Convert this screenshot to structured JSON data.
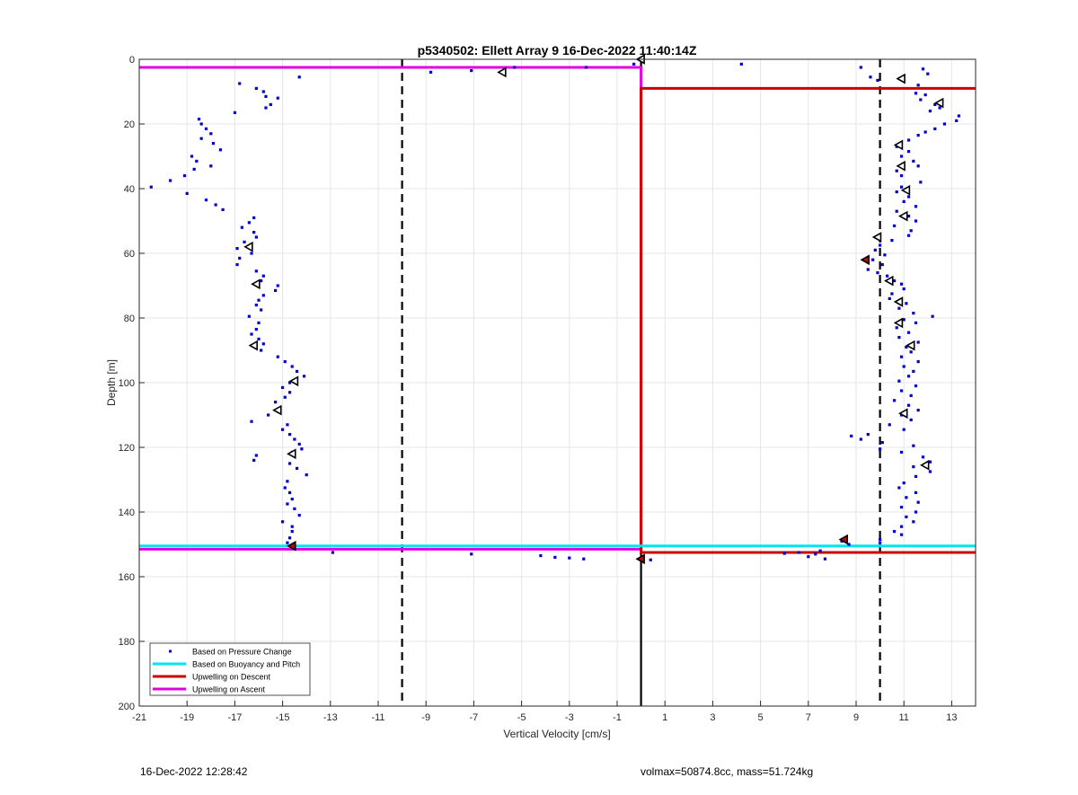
{
  "chart_data": {
    "type": "scatter",
    "title": "p5340502: Ellett Array 9 16-Dec-2022 11:40:14Z",
    "xlabel": "Vertical Velocity [cm/s]",
    "ylabel": "Depth [m]",
    "xlim": [
      -21,
      14
    ],
    "ylim": [
      0,
      200
    ],
    "y_reversed": true,
    "grid": true,
    "legend_position": "bottom-left",
    "x_ticks": [
      -21,
      -19,
      -17,
      -15,
      -13,
      -11,
      -9,
      -7,
      -5,
      -3,
      -1,
      1,
      3,
      5,
      7,
      9,
      11,
      13
    ],
    "y_ticks": [
      0,
      20,
      40,
      60,
      80,
      100,
      120,
      140,
      160,
      180,
      200
    ],
    "legend": [
      {
        "label": "Based on Pressure Change",
        "color": "#0000cc",
        "style": "dot"
      },
      {
        "label": "Based on Buoyancy and Pitch",
        "color": "#00e5ee",
        "style": "line"
      },
      {
        "label": "Upwelling on Descent",
        "color": "#cc0000",
        "style": "line"
      },
      {
        "label": "Upwelling on Ascent",
        "color": "#e000e0",
        "style": "line"
      }
    ],
    "reference_lines": {
      "dashed_x": [
        -10,
        10
      ],
      "solid_x": [
        0
      ]
    },
    "step_lines": [
      {
        "name": "Upwelling on Ascent",
        "color": "#e000e0",
        "points": [
          [
            -21,
            2.5
          ],
          [
            0,
            2.5
          ],
          [
            0,
            151.5
          ],
          [
            -21,
            151.5
          ]
        ]
      },
      {
        "name": "Upwelling on Descent",
        "color": "#cc0000",
        "points": [
          [
            14,
            9
          ],
          [
            0,
            9
          ],
          [
            0,
            152.5
          ],
          [
            14,
            152.5
          ]
        ]
      },
      {
        "name": "Based on Buoyancy and Pitch",
        "color": "#00e5ee",
        "points": [
          [
            -21,
            150.5
          ],
          [
            14,
            150.5
          ]
        ]
      }
    ],
    "pressure_points": [
      [
        -14.3,
        5.5
      ],
      [
        -16.8,
        7.5
      ],
      [
        -16.1,
        9
      ],
      [
        -15.8,
        10
      ],
      [
        -15.7,
        11.5
      ],
      [
        -15.2,
        12
      ],
      [
        -15.5,
        14
      ],
      [
        -15.7,
        15
      ],
      [
        -17.0,
        16.5
      ],
      [
        -18.5,
        18.5
      ],
      [
        -18.4,
        20
      ],
      [
        -18.2,
        21.5
      ],
      [
        -18.0,
        23
      ],
      [
        -18.4,
        24.5
      ],
      [
        -17.9,
        26
      ],
      [
        -17.6,
        28
      ],
      [
        -18.8,
        30
      ],
      [
        -18.6,
        31.5
      ],
      [
        -18.0,
        33
      ],
      [
        -18.7,
        34
      ],
      [
        -19.1,
        36
      ],
      [
        -19.7,
        37.5
      ],
      [
        -20.5,
        39.5
      ],
      [
        -19.0,
        41.5
      ],
      [
        -18.2,
        43.5
      ],
      [
        -17.8,
        45
      ],
      [
        -17.5,
        46.5
      ],
      [
        -16.2,
        49
      ],
      [
        -16.4,
        50.5
      ],
      [
        -16.7,
        52
      ],
      [
        -16.2,
        53.5
      ],
      [
        -16.1,
        55
      ],
      [
        -16.6,
        56.5
      ],
      [
        -16.9,
        58.5
      ],
      [
        -16.3,
        60
      ],
      [
        -16.8,
        61.5
      ],
      [
        -16.9,
        63.5
      ],
      [
        -16.1,
        65.5
      ],
      [
        -15.8,
        67
      ],
      [
        -15.9,
        68.5
      ],
      [
        -15.2,
        70
      ],
      [
        -15.3,
        71.5
      ],
      [
        -15.8,
        73
      ],
      [
        -16.0,
        74.5
      ],
      [
        -16.1,
        76
      ],
      [
        -15.9,
        77.5
      ],
      [
        -16.4,
        79.5
      ],
      [
        -16.0,
        81.5
      ],
      [
        -16.1,
        83.5
      ],
      [
        -16.3,
        85
      ],
      [
        -16.0,
        86.5
      ],
      [
        -15.8,
        88
      ],
      [
        -15.9,
        90
      ],
      [
        -15.2,
        92
      ],
      [
        -14.9,
        93.5
      ],
      [
        -14.6,
        95
      ],
      [
        -14.4,
        96.5
      ],
      [
        -14.1,
        98
      ],
      [
        -14.7,
        100
      ],
      [
        -15.0,
        101.5
      ],
      [
        -14.7,
        103
      ],
      [
        -14.9,
        104.5
      ],
      [
        -15.3,
        106
      ],
      [
        -15.6,
        110
      ],
      [
        -16.3,
        112
      ],
      [
        -14.8,
        113
      ],
      [
        -15.0,
        114.5
      ],
      [
        -14.7,
        116
      ],
      [
        -14.5,
        117.5
      ],
      [
        -14.3,
        119
      ],
      [
        -14.2,
        120.5
      ],
      [
        -14.6,
        121.5
      ],
      [
        -16.1,
        122.5
      ],
      [
        -16.2,
        124
      ],
      [
        -14.7,
        125
      ],
      [
        -14.4,
        126.5
      ],
      [
        -14.0,
        128.5
      ],
      [
        -14.8,
        130.5
      ],
      [
        -14.9,
        132.5
      ],
      [
        -14.7,
        134
      ],
      [
        -14.6,
        136
      ],
      [
        -14.8,
        137.5
      ],
      [
        -14.5,
        139
      ],
      [
        -14.3,
        141
      ],
      [
        -15.0,
        143
      ],
      [
        -14.6,
        144.5
      ],
      [
        -14.6,
        146
      ],
      [
        -14.7,
        148
      ],
      [
        -14.8,
        149.5
      ],
      [
        -14.6,
        151
      ],
      [
        -12.9,
        152.5
      ],
      [
        -7.1,
        153
      ],
      [
        -4.2,
        153.5
      ],
      [
        -3.6,
        154
      ],
      [
        -3.0,
        154.2
      ],
      [
        -2.4,
        154.5
      ],
      [
        -8.8,
        4
      ],
      [
        -7.1,
        3.5
      ],
      [
        -5.3,
        2.5
      ],
      [
        -2.3,
        2.5
      ],
      [
        -0.3,
        1.5
      ],
      [
        4.2,
        1.5
      ],
      [
        9.2,
        2.5
      ],
      [
        9.6,
        5.5
      ],
      [
        9.9,
        6.5
      ],
      [
        11.8,
        3
      ],
      [
        12.0,
        4.5
      ],
      [
        11.6,
        8
      ],
      [
        11.5,
        10.5
      ],
      [
        11.9,
        11
      ],
      [
        11.7,
        12.5
      ],
      [
        12.3,
        14
      ],
      [
        12.5,
        15
      ],
      [
        12.1,
        16
      ],
      [
        13.3,
        17.5
      ],
      [
        13.2,
        19
      ],
      [
        12.7,
        20
      ],
      [
        12.3,
        21.5
      ],
      [
        11.9,
        22.5
      ],
      [
        11.6,
        23.5
      ],
      [
        11.2,
        25
      ],
      [
        10.7,
        27
      ],
      [
        11.2,
        28.5
      ],
      [
        10.9,
        30
      ],
      [
        11.4,
        31.5
      ],
      [
        11.6,
        33
      ],
      [
        10.7,
        34.5
      ],
      [
        10.9,
        36
      ],
      [
        11.7,
        38
      ],
      [
        10.9,
        39.5
      ],
      [
        10.7,
        41
      ],
      [
        11.2,
        42.5
      ],
      [
        11.0,
        44
      ],
      [
        11.5,
        45.5
      ],
      [
        10.7,
        47
      ],
      [
        11.2,
        48.5
      ],
      [
        11.5,
        50
      ],
      [
        10.6,
        51.5
      ],
      [
        11.3,
        53
      ],
      [
        11.2,
        54.5
      ],
      [
        10.5,
        56
      ],
      [
        10.0,
        57.5
      ],
      [
        9.8,
        59
      ],
      [
        10.2,
        60.5
      ],
      [
        9.7,
        62
      ],
      [
        10.1,
        63.5
      ],
      [
        9.5,
        65
      ],
      [
        9.9,
        66
      ],
      [
        10.3,
        67
      ],
      [
        10.6,
        68.5
      ],
      [
        10.9,
        69.5
      ],
      [
        11.0,
        71
      ],
      [
        10.5,
        72.5
      ],
      [
        10.4,
        74
      ],
      [
        11.1,
        75.5
      ],
      [
        10.8,
        77
      ],
      [
        11.4,
        78.5
      ],
      [
        12.2,
        79.5
      ],
      [
        11.0,
        80.5
      ],
      [
        11.5,
        81.5
      ],
      [
        10.7,
        83
      ],
      [
        11.2,
        84.5
      ],
      [
        10.8,
        86
      ],
      [
        11.6,
        87.5
      ],
      [
        11.1,
        89
      ],
      [
        11.3,
        90.5
      ],
      [
        10.9,
        92
      ],
      [
        11.6,
        93.5
      ],
      [
        11.0,
        95
      ],
      [
        11.4,
        96.5
      ],
      [
        11.2,
        98
      ],
      [
        10.8,
        99.5
      ],
      [
        11.5,
        101
      ],
      [
        10.9,
        102.5
      ],
      [
        11.3,
        104
      ],
      [
        10.6,
        105.5
      ],
      [
        11.2,
        107
      ],
      [
        11.6,
        108.5
      ],
      [
        10.9,
        110
      ],
      [
        11.3,
        111.5
      ],
      [
        10.4,
        113
      ],
      [
        11.0,
        114.5
      ],
      [
        9.5,
        116
      ],
      [
        8.8,
        116.5
      ],
      [
        9.2,
        117.5
      ],
      [
        10.1,
        118.5
      ],
      [
        11.4,
        119.5
      ],
      [
        10.0,
        120.5
      ],
      [
        10.9,
        121.5
      ],
      [
        11.8,
        123
      ],
      [
        12.1,
        124.5
      ],
      [
        11.4,
        126
      ],
      [
        12.1,
        127.5
      ],
      [
        11.5,
        129
      ],
      [
        11.0,
        131
      ],
      [
        10.8,
        132.5
      ],
      [
        11.5,
        134
      ],
      [
        11.1,
        135.5
      ],
      [
        11.6,
        137
      ],
      [
        10.9,
        138.5
      ],
      [
        11.5,
        140
      ],
      [
        11.1,
        141.5
      ],
      [
        11.4,
        143
      ],
      [
        10.9,
        144.5
      ],
      [
        10.6,
        146
      ],
      [
        10.9,
        147
      ],
      [
        10.0,
        148.5
      ],
      [
        10.0,
        149.5
      ],
      [
        8.7,
        150
      ],
      [
        8.4,
        149
      ],
      [
        7.5,
        152
      ],
      [
        7.3,
        153
      ],
      [
        7.0,
        153.8
      ],
      [
        7.7,
        154.5
      ],
      [
        6.6,
        152.5
      ],
      [
        6.0,
        152.8
      ],
      [
        0.4,
        154.8
      ]
    ],
    "triangle_markers": [
      [
        0.0,
        0.0
      ],
      [
        -5.8,
        4.0
      ],
      [
        10.9,
        6.0
      ],
      [
        12.5,
        13.5
      ],
      [
        10.8,
        26.5
      ],
      [
        10.9,
        33.0
      ],
      [
        11.1,
        40.5
      ],
      [
        11.0,
        48.5
      ],
      [
        9.9,
        55.0
      ],
      [
        9.4,
        62.0
      ],
      [
        10.4,
        68.5
      ],
      [
        10.8,
        75.0
      ],
      [
        10.8,
        81.5
      ],
      [
        11.3,
        88.5
      ],
      [
        11.0,
        109.5
      ],
      [
        11.9,
        125.5
      ],
      [
        8.5,
        148.5
      ],
      [
        -16.4,
        58.0
      ],
      [
        -16.1,
        69.5
      ],
      [
        -16.2,
        88.5
      ],
      [
        -14.5,
        99.5
      ],
      [
        -15.2,
        108.5
      ],
      [
        -14.6,
        122.0
      ],
      [
        -14.6,
        150.5
      ],
      [
        0.0,
        154.5
      ]
    ],
    "triangle_filled": [
      [
        9.4,
        62.0
      ],
      [
        8.5,
        148.5
      ],
      [
        -14.6,
        150.5
      ],
      [
        0.0,
        154.5
      ]
    ]
  },
  "footer": {
    "timestamp": "16-Dec-2022 12:28:42",
    "specs": "volmax=50874.8cc, mass=51.724kg"
  }
}
